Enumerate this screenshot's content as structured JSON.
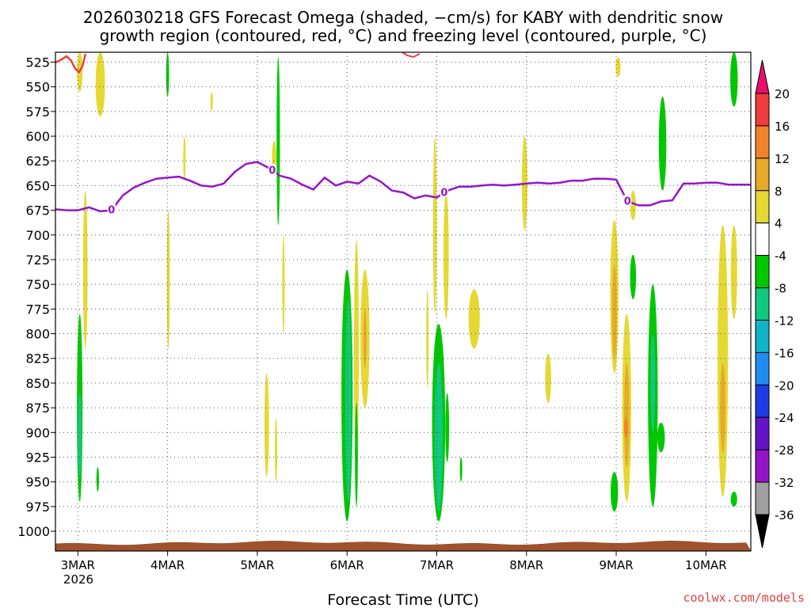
{
  "chart_data": {
    "type": "heatmap",
    "title": "2026030218 GFS Forecast Omega (shaded, −cm/s) for KABY with dendritic snow growth region (contoured, red, °C) and freezing level (contoured, purple, °C)",
    "title_lines": [
      "2026030218 GFS Forecast Omega (shaded, −cm/s) for KABY with dendritic snow",
      "growth region (contoured, red, °C) and freezing level (contoured, purple, °C)"
    ],
    "xlabel": "Forecast Time (UTC)",
    "xlim_hours": [
      -6,
      180
    ],
    "x_ticks": [
      {
        "hour": 0,
        "label": "3MAR",
        "sub": "2026"
      },
      {
        "hour": 24,
        "label": "4MAR"
      },
      {
        "hour": 48,
        "label": "5MAR"
      },
      {
        "hour": 72,
        "label": "6MAR"
      },
      {
        "hour": 96,
        "label": "7MAR"
      },
      {
        "hour": 120,
        "label": "8MAR"
      },
      {
        "hour": 144,
        "label": "9MAR"
      },
      {
        "hour": 168,
        "label": "10MAR"
      }
    ],
    "y_ticks": [
      525,
      550,
      575,
      600,
      625,
      650,
      675,
      700,
      725,
      750,
      775,
      800,
      825,
      850,
      875,
      900,
      925,
      950,
      975,
      1000
    ],
    "ylim_hpa": [
      515,
      1020
    ],
    "ground_hpa": 1012,
    "colorbar": {
      "levels": [
        "20",
        "16",
        "12",
        "8",
        "4",
        "-4",
        "-8",
        "-12",
        "-16",
        "-20",
        "-24",
        "-28",
        "-32",
        "-36"
      ],
      "colors": [
        "#e8106a",
        "#f03c3c",
        "#f0822a",
        "#e6aa28",
        "#e6d832",
        "#ffffff",
        "#00c800",
        "#10c880",
        "#10b4c8",
        "#1e8cf0",
        "#1e3ce6",
        "#6414c8",
        "#9614c8",
        "#a0a0a0",
        "#000000"
      ]
    },
    "freezing_level": {
      "label": "0",
      "label_hours": [
        9,
        52,
        98,
        147
      ],
      "hours": [
        -6,
        -3,
        0,
        3,
        6,
        9,
        12,
        15,
        18,
        21,
        24,
        27,
        30,
        33,
        36,
        39,
        42,
        45,
        48,
        51,
        54,
        57,
        60,
        63,
        66,
        69,
        72,
        75,
        78,
        81,
        84,
        87,
        90,
        93,
        96,
        99,
        102,
        105,
        108,
        111,
        114,
        117,
        120,
        123,
        126,
        129,
        132,
        135,
        138,
        141,
        144,
        147,
        150,
        153,
        156,
        159,
        162,
        165,
        168,
        171,
        174,
        177,
        180
      ],
      "hpa": [
        674,
        675,
        675,
        672,
        676,
        675,
        660,
        652,
        647,
        643,
        642,
        641,
        645,
        650,
        651,
        648,
        636,
        628,
        626,
        632,
        640,
        643,
        649,
        654,
        642,
        650,
        646,
        648,
        640,
        646,
        655,
        657,
        663,
        660,
        662,
        655,
        651,
        651,
        650,
        649,
        650,
        649,
        648,
        647,
        648,
        647,
        645,
        645,
        643,
        643,
        644,
        666,
        670,
        670,
        666,
        665,
        648,
        648,
        647,
        647,
        649,
        649,
        649
      ]
    },
    "dgz_contour_note": "red -12 to -18 C contour near 525 hPa",
    "omega_regions_note": "shaded upward (green/teal) and downward (yellow/orange) motion",
    "omega_regions": [
      {
        "h": 0.5,
        "p1": 515,
        "p2": 555,
        "w": 1.5,
        "c": "#e6d832"
      },
      {
        "h": 6,
        "p1": 515,
        "p2": 580,
        "w": 2.5,
        "c": "#e6d832"
      },
      {
        "h": 2,
        "p1": 655,
        "p2": 815,
        "w": 1.2,
        "c": "#e6d832"
      },
      {
        "h": 0.5,
        "p1": 780,
        "p2": 970,
        "w": 1.5,
        "c": "#00c800"
      },
      {
        "h": 0.5,
        "p1": 860,
        "p2": 945,
        "w": 1,
        "c": "#10c880"
      },
      {
        "h": 5.3,
        "p1": 935,
        "p2": 960,
        "w": 0.7,
        "c": "#00c800"
      },
      {
        "h": 24,
        "p1": 515,
        "p2": 560,
        "w": 0.8,
        "c": "#00c800"
      },
      {
        "h": 24.2,
        "p1": 675,
        "p2": 815,
        "w": 0.8,
        "c": "#e6d832"
      },
      {
        "h": 35.8,
        "p1": 555,
        "p2": 575,
        "w": 0.5,
        "c": "#e6d832"
      },
      {
        "h": 28.5,
        "p1": 600,
        "p2": 645,
        "w": 0.4,
        "c": "#e6d832"
      },
      {
        "h": 53.6,
        "p1": 520,
        "p2": 690,
        "w": 0.9,
        "c": "#00c800"
      },
      {
        "h": 52.5,
        "p1": 605,
        "p2": 640,
        "w": 1.2,
        "c": "#e6d832"
      },
      {
        "h": 55,
        "p1": 700,
        "p2": 800,
        "w": 0.5,
        "c": "#e6d832"
      },
      {
        "h": 50.5,
        "p1": 840,
        "p2": 945,
        "w": 1.2,
        "c": "#e6d832"
      },
      {
        "h": 53,
        "p1": 885,
        "p2": 950,
        "w": 0.5,
        "c": "#e6d832"
      },
      {
        "h": 72,
        "p1": 735,
        "p2": 990,
        "w": 3.0,
        "c": "#00c800"
      },
      {
        "h": 72.3,
        "p1": 765,
        "p2": 970,
        "w": 1.6,
        "c": "#10c880"
      },
      {
        "h": 74.5,
        "p1": 705,
        "p2": 930,
        "w": 1.3,
        "c": "#e6d832"
      },
      {
        "h": 76.8,
        "p1": 735,
        "p2": 875,
        "w": 2.4,
        "c": "#e6d832"
      },
      {
        "h": 76.8,
        "p1": 775,
        "p2": 835,
        "w": 0.9,
        "c": "#e6aa28"
      },
      {
        "h": 74.5,
        "p1": 870,
        "p2": 975,
        "w": 0.8,
        "c": "#00c800"
      },
      {
        "h": 96.5,
        "p1": 790,
        "p2": 990,
        "w": 3.5,
        "c": "#00c800"
      },
      {
        "h": 96.5,
        "p1": 830,
        "p2": 980,
        "w": 2.2,
        "c": "#10c880"
      },
      {
        "h": 95.5,
        "p1": 600,
        "p2": 780,
        "w": 1.0,
        "c": "#e6d832"
      },
      {
        "h": 98.5,
        "p1": 655,
        "p2": 785,
        "w": 1.4,
        "c": "#e6d832"
      },
      {
        "h": 93.5,
        "p1": 755,
        "p2": 855,
        "w": 0.5,
        "c": "#e6d832"
      },
      {
        "h": 98.8,
        "p1": 860,
        "p2": 930,
        "w": 1.0,
        "c": "#00c800"
      },
      {
        "h": 102.5,
        "p1": 925,
        "p2": 950,
        "w": 0.5,
        "c": "#00c800"
      },
      {
        "h": 106,
        "p1": 755,
        "p2": 815,
        "w": 3.0,
        "c": "#e6d832"
      },
      {
        "h": 119.5,
        "p1": 600,
        "p2": 695,
        "w": 1.5,
        "c": "#e6d832"
      },
      {
        "h": 125.8,
        "p1": 820,
        "p2": 870,
        "w": 1.6,
        "c": "#e6d832"
      },
      {
        "h": 144.5,
        "p1": 520,
        "p2": 540,
        "w": 1.3,
        "c": "#e6d832"
      },
      {
        "h": 148.5,
        "p1": 655,
        "p2": 685,
        "w": 1.5,
        "c": "#e6d832"
      },
      {
        "h": 148.5,
        "p1": 720,
        "p2": 765,
        "w": 1.6,
        "c": "#00c800"
      },
      {
        "h": 143.5,
        "p1": 685,
        "p2": 840,
        "w": 2.2,
        "c": "#e6d832"
      },
      {
        "h": 143.5,
        "p1": 730,
        "p2": 825,
        "w": 1.2,
        "c": "#e6aa28"
      },
      {
        "h": 146.8,
        "p1": 780,
        "p2": 970,
        "w": 2.4,
        "c": "#e6d832"
      },
      {
        "h": 146.8,
        "p1": 830,
        "p2": 935,
        "w": 1.4,
        "c": "#e6aa28"
      },
      {
        "h": 146.6,
        "p1": 885,
        "p2": 905,
        "w": 1.0,
        "c": "#f0822a"
      },
      {
        "h": 143.5,
        "p1": 940,
        "p2": 980,
        "w": 2.0,
        "c": "#00c800"
      },
      {
        "h": 153.8,
        "p1": 750,
        "p2": 975,
        "w": 2.6,
        "c": "#00c800"
      },
      {
        "h": 153.8,
        "p1": 800,
        "p2": 900,
        "w": 1.2,
        "c": "#10c880"
      },
      {
        "h": 156,
        "p1": 890,
        "p2": 920,
        "w": 2.0,
        "c": "#00c800"
      },
      {
        "h": 156.4,
        "p1": 560,
        "p2": 655,
        "w": 2.0,
        "c": "#00c800"
      },
      {
        "h": 175.5,
        "p1": 515,
        "p2": 570,
        "w": 2.0,
        "c": "#00c800"
      },
      {
        "h": 172.5,
        "p1": 690,
        "p2": 965,
        "w": 2.8,
        "c": "#e6d832"
      },
      {
        "h": 172.5,
        "p1": 830,
        "p2": 920,
        "w": 1.4,
        "c": "#e6aa28"
      },
      {
        "h": 175.5,
        "p1": 690,
        "p2": 785,
        "w": 1.7,
        "c": "#e6d832"
      },
      {
        "h": 175.5,
        "p1": 960,
        "p2": 975,
        "w": 1.7,
        "c": "#00c800"
      }
    ]
  },
  "credit": "coolwx.com/models"
}
